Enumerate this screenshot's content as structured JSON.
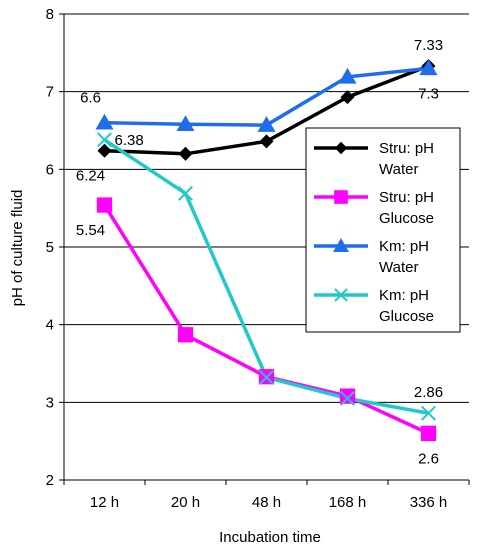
{
  "chart_data": {
    "type": "line",
    "xlabel": "Incubation time",
    "ylabel": "pH of culture fluid",
    "categories": [
      "12 h",
      "20 h",
      "48 h",
      "168 h",
      "336 h"
    ],
    "ylim": [
      2,
      8
    ],
    "yticks": [
      2,
      3,
      4,
      5,
      6,
      7,
      8
    ],
    "grid": "horizontal",
    "legend_position": "right",
    "series": [
      {
        "name": "Stru: pH Water",
        "name_lines": [
          "Stru: pH",
          "Water"
        ],
        "values": [
          6.24,
          6.2,
          6.36,
          6.93,
          7.33
        ],
        "color": "#000000",
        "marker": "diamond"
      },
      {
        "name": "Stru: pH Glucose",
        "name_lines": [
          "Stru: pH",
          "Glucose"
        ],
        "values": [
          5.54,
          3.87,
          3.33,
          3.08,
          2.6
        ],
        "color": "#FF00FF",
        "marker": "square"
      },
      {
        "name": "Km: pH Water",
        "name_lines": [
          "Km: pH",
          "Water"
        ],
        "values": [
          6.6,
          6.58,
          6.57,
          7.19,
          7.3
        ],
        "color": "#1E6EEB",
        "marker": "triangle"
      },
      {
        "name": "Km: pH Glucose",
        "name_lines": [
          "Km: pH",
          "Glucose"
        ],
        "values": [
          6.38,
          5.69,
          3.32,
          3.05,
          2.86
        ],
        "color": "#20C9C9",
        "marker": "x"
      }
    ],
    "data_labels": [
      {
        "text": "6.6",
        "series": 2,
        "index": 0,
        "anchor": "above-left"
      },
      {
        "text": "6.38",
        "series": 3,
        "index": 0,
        "anchor": "right"
      },
      {
        "text": "6.24",
        "series": 0,
        "index": 0,
        "anchor": "below-left"
      },
      {
        "text": "5.54",
        "series": 1,
        "index": 0,
        "anchor": "below-left"
      },
      {
        "text": "7.33",
        "series": 0,
        "index": 4,
        "anchor": "above"
      },
      {
        "text": "7.3",
        "series": 2,
        "index": 4,
        "anchor": "below"
      },
      {
        "text": "2.86",
        "series": 3,
        "index": 4,
        "anchor": "above"
      },
      {
        "text": "2.6",
        "series": 1,
        "index": 4,
        "anchor": "below"
      }
    ]
  }
}
